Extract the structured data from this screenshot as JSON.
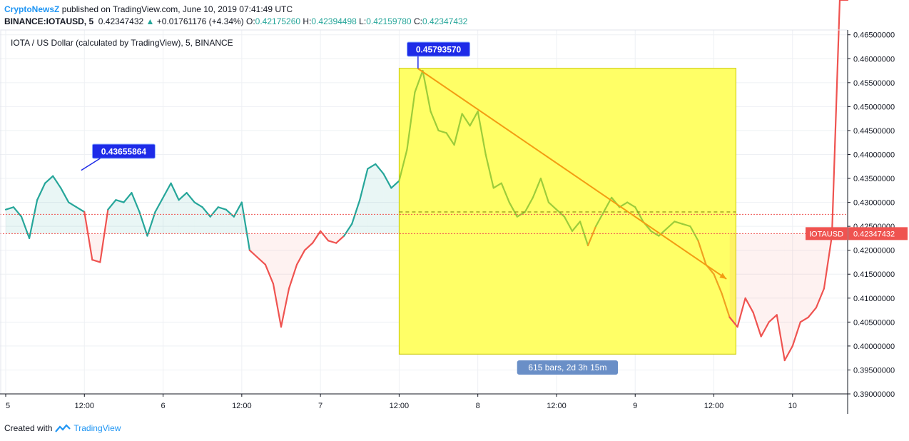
{
  "header": {
    "brand": "CryptoNewsZ",
    "published": "published on TradingView.com, June 10, 2019 07:41:49 UTC"
  },
  "ohlc": {
    "symbol": "BINANCE:IOTAUSD, 5",
    "last": "0.42347432",
    "change": "+0.01761176 (+4.34%)",
    "o_label": "O:",
    "o": "0.42175260",
    "h_label": "H:",
    "h": "0.42394498",
    "l_label": "L:",
    "l": "0.42159780",
    "c_label": "C:",
    "c": "0.42347432"
  },
  "footer": {
    "created_with": "Created with",
    "tradingview": "TradingView"
  },
  "colors": {
    "up": "#26a69a",
    "down": "#ef5350",
    "highlight": "#ffff66",
    "label_bg": "#1e2be8",
    "arrow": "#f39c12",
    "info_bg": "#6a8fc7"
  },
  "chart_data": {
    "type": "line",
    "title": "IOTA / US Dollar (calculated by TradingView), 5, BINANCE",
    "ylim": [
      0.39,
      0.466
    ],
    "yticks": [
      "0.46500000",
      "0.46000000",
      "0.45500000",
      "0.45000000",
      "0.44500000",
      "0.44000000",
      "0.43500000",
      "0.43000000",
      "0.42500000",
      "0.42000000",
      "0.41500000",
      "0.41000000",
      "0.40500000",
      "0.40000000",
      "0.39500000",
      "0.39000000"
    ],
    "xticks": [
      {
        "label": "5",
        "t": 0
      },
      {
        "label": "12:00",
        "t": 0.5
      },
      {
        "label": "6",
        "t": 1.0
      },
      {
        "label": "12:00",
        "t": 1.5
      },
      {
        "label": "7",
        "t": 2.0
      },
      {
        "label": "12:00",
        "t": 2.5
      },
      {
        "label": "8",
        "t": 3.0
      },
      {
        "label": "12:00",
        "t": 3.5
      },
      {
        "label": "9",
        "t": 4.0
      },
      {
        "label": "12:00",
        "t": 4.5
      },
      {
        "label": "10",
        "t": 5.0
      }
    ],
    "baseline": 0.42347432,
    "last_price_label": "IOTAUSD",
    "last_price": "0.42347432",
    "series": [
      {
        "t": [
          0.0,
          0.05,
          0.1,
          0.15,
          0.2,
          0.25,
          0.3,
          0.35,
          0.4,
          0.45,
          0.5,
          0.55,
          0.6,
          0.65,
          0.7,
          0.75,
          0.8,
          0.85,
          0.9,
          0.95,
          1.0,
          1.05,
          1.1,
          1.15,
          1.2,
          1.25,
          1.3,
          1.35,
          1.4,
          1.45,
          1.5,
          1.55,
          1.6,
          1.65,
          1.7,
          1.75,
          1.8,
          1.85,
          1.9,
          1.95,
          2.0,
          2.05,
          2.1,
          2.15,
          2.2,
          2.25,
          2.3,
          2.35,
          2.4,
          2.45,
          2.5,
          2.55,
          2.6,
          2.65,
          2.7,
          2.75,
          2.8,
          2.85,
          2.9,
          2.95,
          3.0,
          3.05,
          3.1,
          3.15,
          3.2,
          3.25,
          3.3,
          3.35,
          3.4,
          3.45,
          3.5,
          3.55,
          3.6,
          3.65,
          3.7,
          3.75,
          3.8,
          3.85,
          3.9,
          3.95,
          4.0,
          4.05,
          4.1,
          4.15,
          4.2,
          4.25,
          4.3,
          4.35,
          4.4,
          4.45,
          4.5,
          4.55,
          4.6,
          4.65,
          4.7,
          4.75,
          4.8,
          4.85,
          4.9,
          4.95,
          5.0,
          5.05,
          5.1,
          5.15,
          5.2,
          5.25,
          5.3,
          5.35
        ],
        "v": [
          0.4285,
          0.429,
          0.427,
          0.4225,
          0.4305,
          0.434,
          0.4355,
          0.433,
          0.43,
          0.429,
          0.428,
          0.418,
          0.4175,
          0.4285,
          0.4305,
          0.43,
          0.432,
          0.428,
          0.423,
          0.428,
          0.431,
          0.434,
          0.4305,
          0.432,
          0.43,
          0.429,
          0.427,
          0.429,
          0.4285,
          0.427,
          0.43,
          0.42,
          0.4185,
          0.417,
          0.413,
          0.404,
          0.412,
          0.417,
          0.42,
          0.4215,
          0.424,
          0.422,
          0.4215,
          0.423,
          0.4255,
          0.4305,
          0.437,
          0.438,
          0.436,
          0.433,
          0.4345,
          0.441,
          0.453,
          0.4575,
          0.449,
          0.445,
          0.4445,
          0.442,
          0.4485,
          0.446,
          0.449,
          0.44,
          0.433,
          0.434,
          0.43,
          0.427,
          0.428,
          0.431,
          0.435,
          0.43,
          0.4285,
          0.427,
          0.424,
          0.426,
          0.421,
          0.425,
          0.428,
          0.431,
          0.429,
          0.43,
          0.429,
          0.426,
          0.424,
          0.423,
          0.4245,
          0.426,
          0.4255,
          0.425,
          0.422,
          0.417,
          0.415,
          0.411,
          0.406,
          0.404,
          0.41,
          0.407,
          0.402,
          0.405,
          0.4065,
          0.397,
          0.4,
          0.405,
          0.406,
          0.408,
          0.412,
          0.423
        ]
      }
    ],
    "annotations": {
      "peak_label": "0.45793570",
      "left_peak_label": "0.43655864",
      "measure_label": "615 bars, 2d 3h 15m"
    }
  }
}
